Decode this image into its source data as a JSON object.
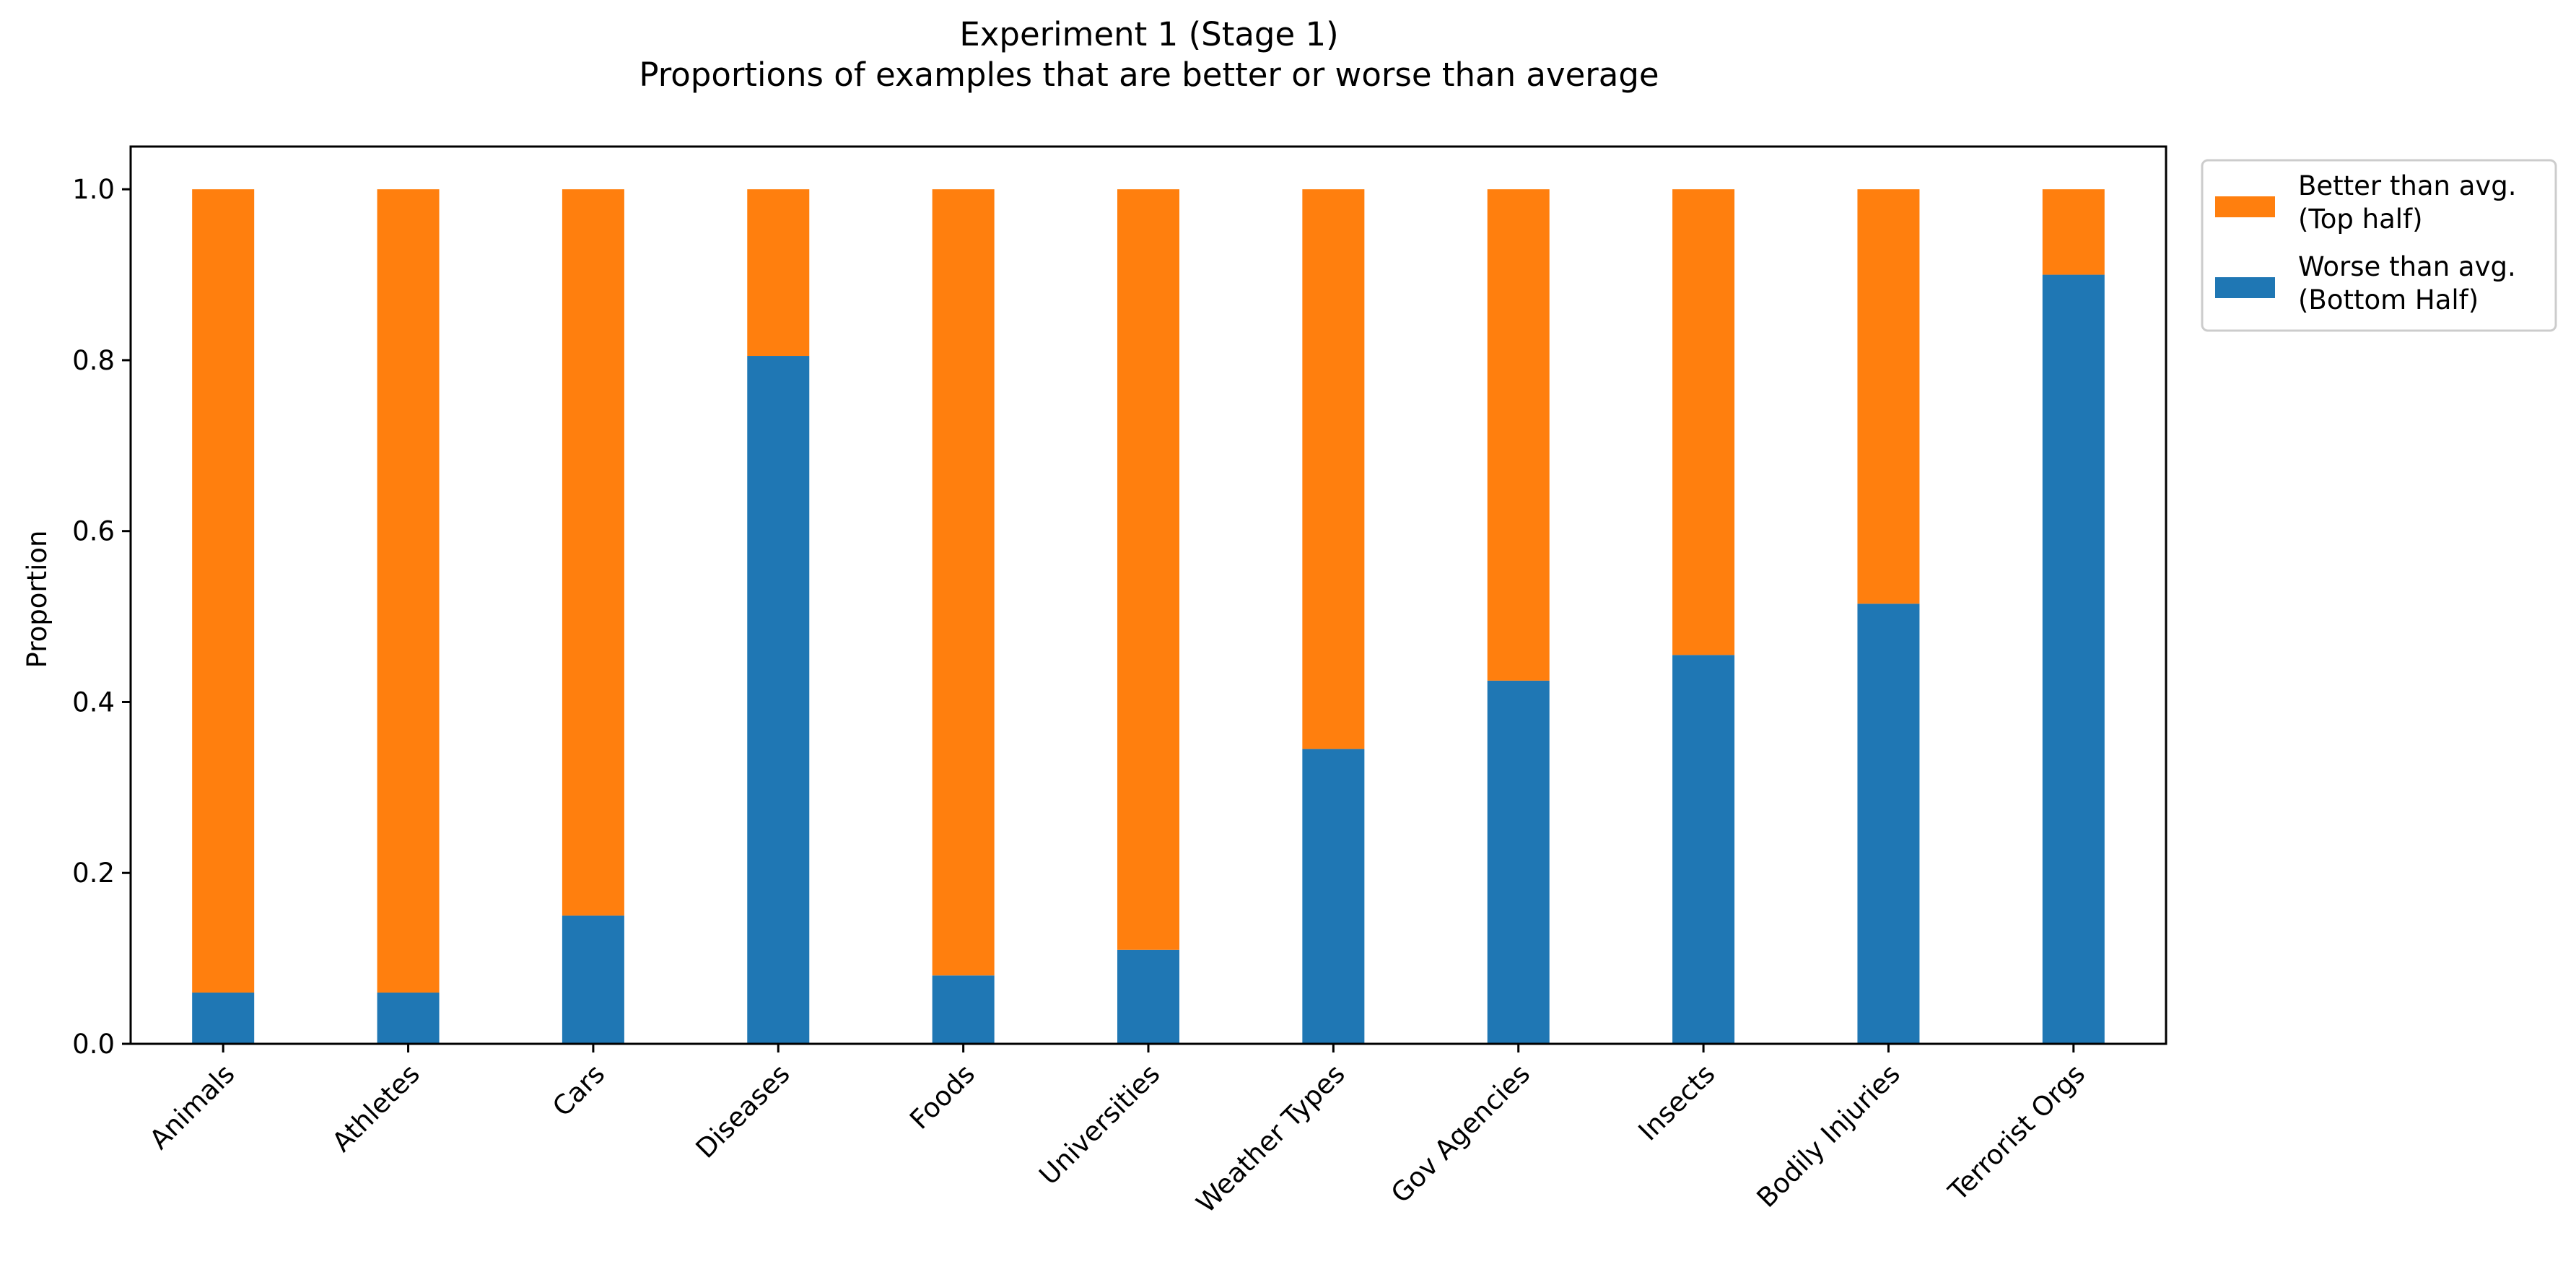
{
  "chart_data": {
    "type": "bar",
    "stacked": true,
    "title": "Experiment 1 (Stage 1)",
    "subtitle": "Proportions of examples that are better or worse than average",
    "xlabel": "",
    "ylabel": "Proportion",
    "ylim": [
      0,
      1.05
    ],
    "yticks": [
      "0.0",
      "0.2",
      "0.4",
      "0.6",
      "0.8",
      "1.0"
    ],
    "grid": false,
    "legend_position": "outside-top-right",
    "categories": [
      "Animals",
      "Athletes",
      "Cars",
      "Diseases",
      "Foods",
      "Universities",
      "Weather Types",
      "Gov Agencies",
      "Insects",
      "Bodily Injuries",
      "Terrorist Orgs"
    ],
    "series": [
      {
        "name": "Worse than avg. (Bottom Half)",
        "legend_lines": [
          "Worse than avg.",
          "(Bottom Half)"
        ],
        "color": "#1f77b4",
        "values": [
          0.06,
          0.06,
          0.15,
          0.805,
          0.08,
          0.11,
          0.345,
          0.425,
          0.455,
          0.515,
          0.9
        ]
      },
      {
        "name": "Better than avg. (Top half)",
        "legend_lines": [
          "Better than avg.",
          "(Top half)"
        ],
        "color": "#ff7f0e",
        "values": [
          0.94,
          0.94,
          0.85,
          0.195,
          0.92,
          0.89,
          0.655,
          0.575,
          0.545,
          0.485,
          0.1
        ]
      }
    ]
  }
}
